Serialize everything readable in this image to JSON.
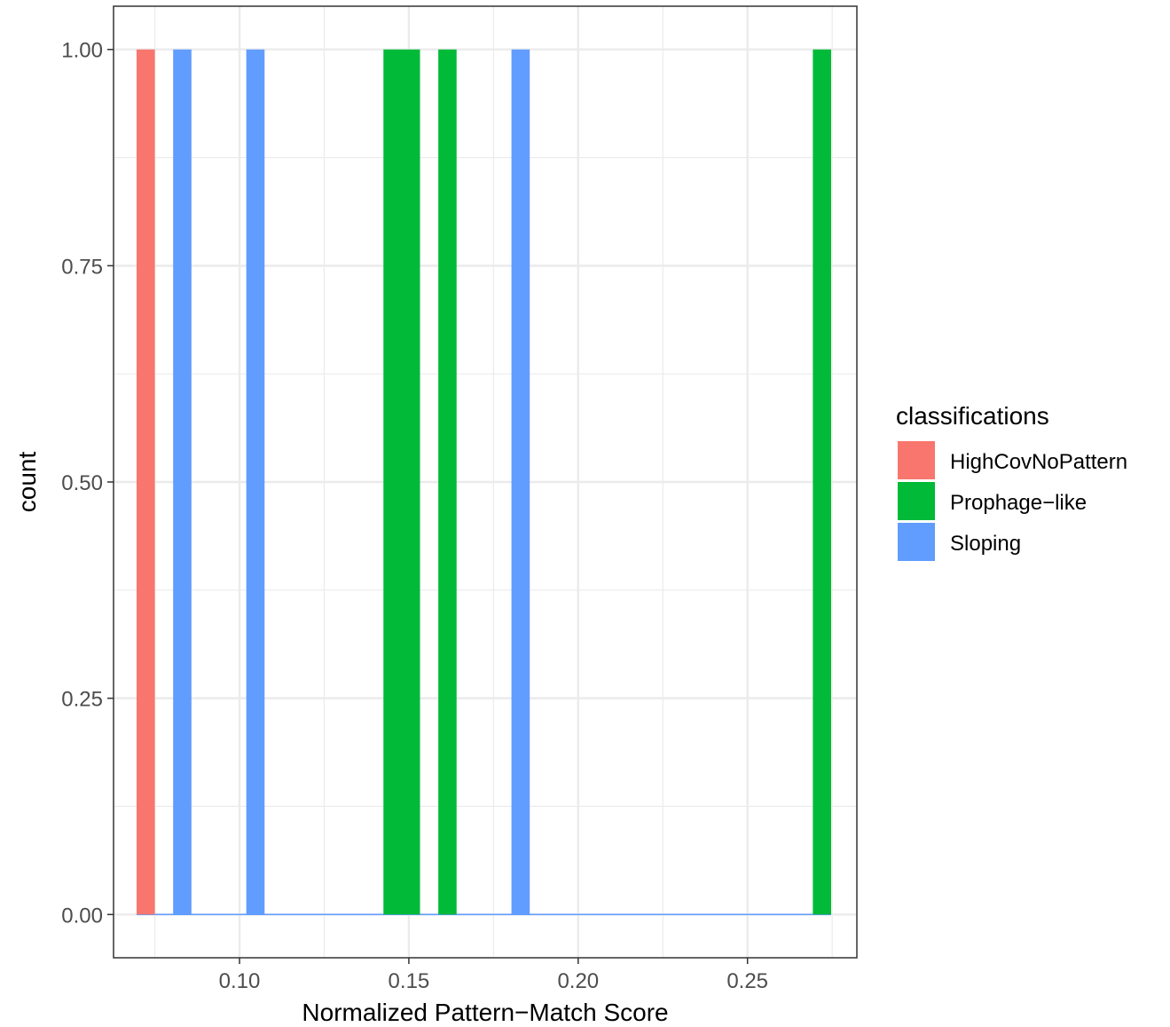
{
  "chart_data": {
    "type": "bar",
    "title": "",
    "xlabel": "Normalized Pattern−Match Score",
    "ylabel": "count",
    "xlim": [
      0.0628,
      0.2823
    ],
    "ylim": [
      -0.05,
      1.05
    ],
    "x_ticks": [
      0.1,
      0.15,
      0.2,
      0.25
    ],
    "x_tick_labels": [
      "0.10",
      "0.15",
      "0.20",
      "0.25"
    ],
    "y_ticks": [
      0.0,
      0.25,
      0.5,
      0.75,
      1.0
    ],
    "y_tick_labels": [
      "0.00",
      "0.25",
      "0.50",
      "0.75",
      "1.00"
    ],
    "grid": true,
    "legend": {
      "title": "classifications",
      "position": "right",
      "entries": [
        "HighCovNoPattern",
        "Prophage−like",
        "Sloping"
      ]
    },
    "bin_width": 0.0054,
    "series": [
      {
        "name": "HighCovNoPattern",
        "color": "#F8766D",
        "bars": [
          {
            "x_start": 0.0696,
            "x_end": 0.075,
            "count": 1
          }
        ]
      },
      {
        "name": "Prophage−like",
        "color": "#00BA38",
        "bars": [
          {
            "x_start": 0.1425,
            "x_end": 0.1533,
            "count": 1
          },
          {
            "x_start": 0.1587,
            "x_end": 0.1641,
            "count": 1
          },
          {
            "x_start": 0.2693,
            "x_end": 0.2747,
            "count": 1
          }
        ]
      },
      {
        "name": "Sloping",
        "color": "#619CFF",
        "bars": [
          {
            "x_start": 0.0804,
            "x_end": 0.0858,
            "count": 1
          },
          {
            "x_start": 0.102,
            "x_end": 0.1074,
            "count": 1
          },
          {
            "x_start": 0.1803,
            "x_end": 0.1857,
            "count": 1
          }
        ]
      }
    ],
    "baseline": {
      "x_start": 0.0696,
      "x_end": 0.2747,
      "count": 0,
      "color": "#619CFF"
    }
  }
}
